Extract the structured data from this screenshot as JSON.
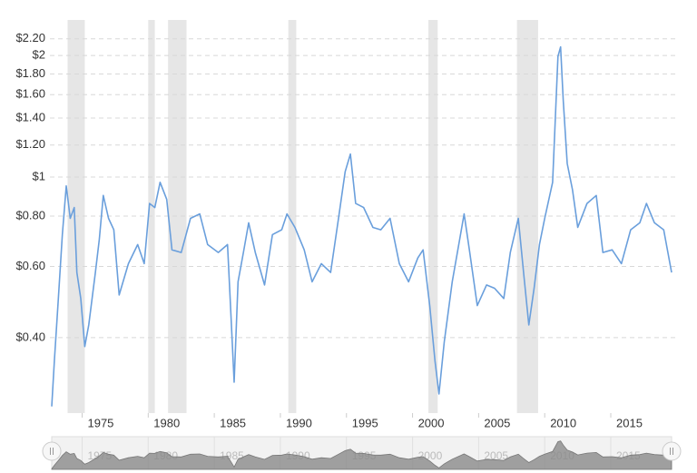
{
  "chart_data": {
    "type": "line",
    "x": [
      1972.7,
      1972.9,
      1973.2,
      1973.5,
      1973.8,
      1974.1,
      1974.4,
      1974.6,
      1974.9,
      1975.2,
      1975.5,
      1976.0,
      1976.3,
      1976.6,
      1977.0,
      1977.4,
      1977.8,
      1978.5,
      1979.2,
      1979.7,
      1980.1,
      1980.5,
      1980.9,
      1981.4,
      1981.8,
      1982.5,
      1983.2,
      1983.9,
      1984.5,
      1985.3,
      1986.0,
      1986.2,
      1986.5,
      1986.8,
      1987.2,
      1987.6,
      1988.1,
      1988.8,
      1989.4,
      1990.1,
      1990.5,
      1991.1,
      1991.8,
      1992.4,
      1993.1,
      1993.8,
      1994.4,
      1994.9,
      1995.3,
      1995.7,
      1996.3,
      1997.0,
      1997.6,
      1998.3,
      1999.0,
      1999.7,
      2000.4,
      2000.8,
      2001.3,
      2001.7,
      2002.0,
      2002.4,
      2003.0,
      2003.5,
      2003.9,
      2004.3,
      2004.9,
      2005.6,
      2006.2,
      2006.9,
      2007.4,
      2008.0,
      2008.4,
      2008.8,
      2009.2,
      2009.6,
      2010.0,
      2010.6,
      2011.0,
      2011.2,
      2011.4,
      2011.7,
      2012.1,
      2012.5,
      2013.2,
      2013.9,
      2014.4,
      2015.1,
      2015.8,
      2016.5,
      2017.2,
      2017.7,
      2018.3,
      2019.0,
      2019.6
    ],
    "values": [
      0.27,
      0.35,
      0.5,
      0.72,
      0.95,
      0.79,
      0.84,
      0.58,
      0.5,
      0.38,
      0.43,
      0.58,
      0.7,
      0.9,
      0.79,
      0.74,
      0.51,
      0.61,
      0.68,
      0.61,
      0.86,
      0.84,
      0.97,
      0.88,
      0.66,
      0.65,
      0.79,
      0.81,
      0.68,
      0.65,
      0.68,
      0.5,
      0.31,
      0.55,
      0.65,
      0.77,
      0.65,
      0.54,
      0.72,
      0.74,
      0.81,
      0.75,
      0.66,
      0.55,
      0.61,
      0.58,
      0.79,
      1.03,
      1.14,
      0.86,
      0.84,
      0.75,
      0.74,
      0.79,
      0.61,
      0.55,
      0.63,
      0.66,
      0.48,
      0.35,
      0.29,
      0.39,
      0.55,
      0.68,
      0.81,
      0.66,
      0.48,
      0.54,
      0.53,
      0.5,
      0.65,
      0.79,
      0.58,
      0.43,
      0.53,
      0.68,
      0.79,
      0.97,
      1.99,
      2.1,
      1.55,
      1.08,
      0.93,
      0.75,
      0.86,
      0.9,
      0.65,
      0.66,
      0.61,
      0.74,
      0.77,
      0.86,
      0.77,
      0.74,
      0.58
    ],
    "color": "#6a9fdc",
    "bands": [
      [
        1973.9,
        1975.2
      ],
      [
        1980.0,
        1980.5
      ],
      [
        1981.5,
        1982.9
      ],
      [
        1990.6,
        1991.2
      ],
      [
        2001.2,
        2001.9
      ],
      [
        2007.9,
        2009.5
      ]
    ],
    "band_color": "#e6e6e6",
    "xlim": [
      1972.7,
      2019.6
    ],
    "xticks": [
      1975,
      1980,
      1985,
      1990,
      1995,
      2000,
      2005,
      2010,
      2015
    ],
    "ylim": [
      0.26,
      2.35
    ],
    "log_y": true,
    "yticks": [
      {
        "value": 0.4,
        "label": "$0.40"
      },
      {
        "value": 0.6,
        "label": "$0.60"
      },
      {
        "value": 0.8,
        "label": "$0.80"
      },
      {
        "value": 1,
        "label": "$1"
      },
      {
        "value": 1.2,
        "label": "$1.20"
      },
      {
        "value": 1.4,
        "label": "$1.40"
      },
      {
        "value": 1.6,
        "label": "$1.60"
      },
      {
        "value": 1.8,
        "label": "$1.80"
      },
      {
        "value": 2,
        "label": "$2"
      },
      {
        "value": 2.2,
        "label": "$2.20"
      }
    ],
    "grid": true
  }
}
